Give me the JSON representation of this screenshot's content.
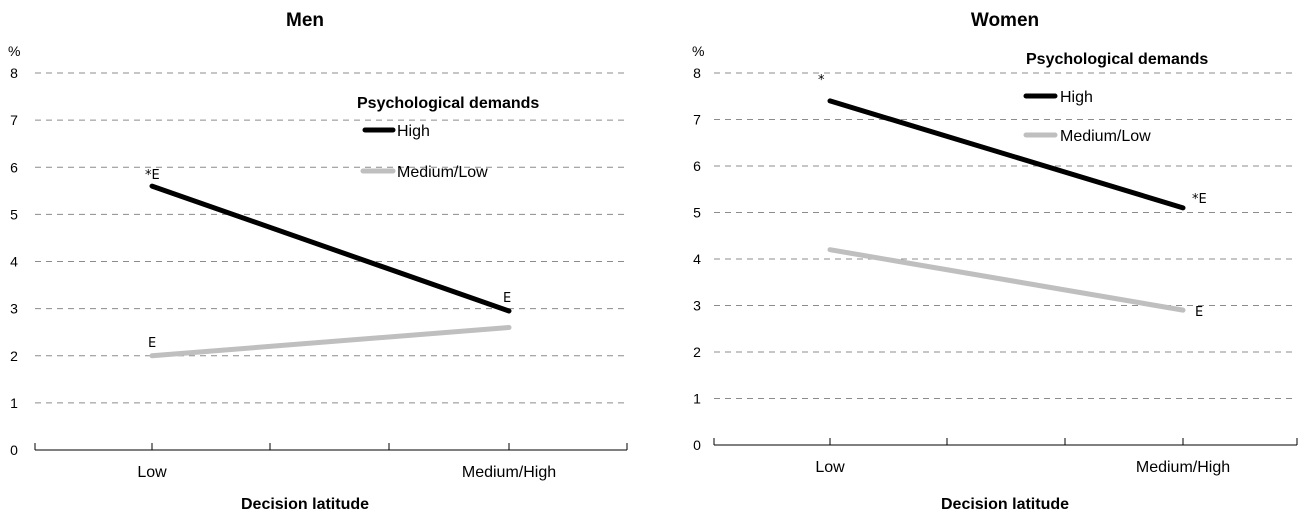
{
  "chart_data": [
    {
      "type": "line",
      "title": "Men",
      "unit_label": "%",
      "xlabel": "Decision latitude",
      "ylabel": "",
      "ylim": [
        0,
        8
      ],
      "yticks": [
        "0",
        "1",
        "2",
        "3",
        "4",
        "5",
        "6",
        "7",
        "8"
      ],
      "categories": [
        "Low",
        "Medium/High"
      ],
      "grid": true,
      "legend": {
        "title": "Psychological demands",
        "placement": "top-right"
      },
      "series": [
        {
          "name": "High",
          "values": [
            5.6,
            2.95
          ],
          "color": "#000000",
          "notes": [
            "*E",
            "E"
          ]
        },
        {
          "name": "Medium/Low",
          "values": [
            2.0,
            2.6
          ],
          "color": "#bfbfbf",
          "notes": [
            "E",
            ""
          ]
        }
      ]
    },
    {
      "type": "line",
      "title": "Women",
      "unit_label": "%",
      "xlabel": "Decision latitude",
      "ylabel": "",
      "ylim": [
        0,
        8
      ],
      "yticks": [
        "0",
        "1",
        "2",
        "3",
        "4",
        "5",
        "6",
        "7",
        "8"
      ],
      "categories": [
        "Low",
        "Medium/High"
      ],
      "grid": true,
      "legend": {
        "title": "Psychological demands",
        "placement": "top-right"
      },
      "series": [
        {
          "name": "High",
          "values": [
            7.4,
            5.1
          ],
          "color": "#000000",
          "notes": [
            "*",
            "*E"
          ]
        },
        {
          "name": "Medium/Low",
          "values": [
            4.2,
            2.9
          ],
          "color": "#bfbfbf",
          "notes": [
            "",
            "E"
          ]
        }
      ]
    }
  ]
}
